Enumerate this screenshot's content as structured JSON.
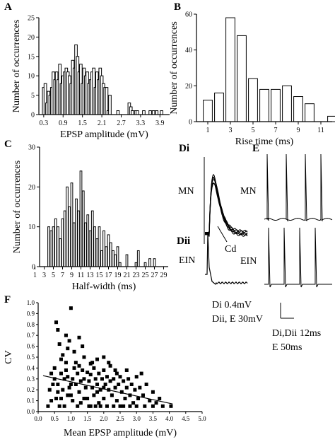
{
  "panels": {
    "A": "A",
    "B": "B",
    "C": "C",
    "D_i": "Di",
    "D_ii": "Dii",
    "E": "E",
    "F": "F"
  },
  "traces": {
    "MN": "MN",
    "EIN": "EIN",
    "Cd": "Cd"
  },
  "scale_bars": {
    "di_amp": "Di    0.4mV",
    "dii_amp": "Dii, E 30mV",
    "dii_time": "Di,Dii  12ms",
    "e_time": "E        50ms"
  },
  "chart_data": [
    {
      "id": "A",
      "type": "bar",
      "xlabel": "EPSP amplitude (mV)",
      "ylabel": "Number of occurrences",
      "xlim": [
        0.15,
        4.2
      ],
      "ylim": [
        0,
        25
      ],
      "yticks": [
        0,
        5,
        10,
        15,
        20,
        25
      ],
      "xticks": [
        "0.3",
        "0.9",
        "1.5",
        "2.1",
        "2.7",
        "3.3",
        "3.9"
      ],
      "xtick_values": [
        0.3,
        0.9,
        1.5,
        2.1,
        2.7,
        3.3,
        3.9
      ],
      "bin_width": 0.08,
      "x": [
        0.3,
        0.35,
        0.4,
        0.45,
        0.5,
        0.55,
        0.6,
        0.65,
        0.7,
        0.75,
        0.8,
        0.85,
        0.9,
        0.95,
        1.0,
        1.05,
        1.1,
        1.15,
        1.2,
        1.25,
        1.3,
        1.35,
        1.4,
        1.45,
        1.5,
        1.55,
        1.6,
        1.65,
        1.7,
        1.75,
        1.8,
        1.85,
        1.9,
        1.95,
        2.0,
        2.05,
        2.1,
        2.15,
        2.2,
        2.25,
        2.3,
        2.35,
        2.6,
        2.95,
        3.0,
        3.05,
        3.15,
        3.2,
        3.4,
        3.6,
        3.7,
        3.8,
        3.95
      ],
      "values": [
        7,
        8,
        3,
        6,
        5,
        7,
        11,
        9,
        11,
        9,
        13,
        8,
        10,
        11,
        12,
        11,
        10,
        8,
        14,
        12,
        18,
        15,
        11,
        13,
        8,
        12,
        10,
        11,
        8,
        9,
        11,
        12,
        7,
        11,
        9,
        12,
        10,
        8,
        7,
        7,
        1,
        5,
        1,
        3,
        2,
        1,
        1,
        1,
        1,
        1,
        1,
        1,
        1
      ]
    },
    {
      "id": "B",
      "type": "bar",
      "xlabel": "Rise time (ms)",
      "ylabel": "Number of occurrences",
      "xlim": [
        0,
        12
      ],
      "ylim": [
        0,
        60
      ],
      "yticks": [
        0,
        20,
        40,
        60
      ],
      "xticks": [
        "1",
        "3",
        "5",
        "7",
        "9",
        "11"
      ],
      "xtick_values": [
        1,
        3,
        5,
        7,
        9,
        11
      ],
      "bin_width": 0.8,
      "x": [
        1,
        2,
        3,
        4,
        5,
        6,
        7,
        8,
        9,
        10,
        11,
        12
      ],
      "values": [
        12,
        16,
        58,
        48,
        24,
        18,
        18,
        20,
        14,
        10,
        0,
        3
      ]
    },
    {
      "id": "C",
      "type": "bar",
      "xlabel": "Half-width (ms)",
      "ylabel": "Number of occurrences",
      "xlim": [
        2,
        30
      ],
      "ylim": [
        0,
        30
      ],
      "yticks": [
        0,
        10,
        20,
        30
      ],
      "xticks": [
        "1",
        "3",
        "5",
        "7",
        "9",
        "11",
        "13",
        "15",
        "17",
        "19",
        "21",
        "23",
        "25",
        "27",
        "29"
      ],
      "xtick_values": [
        1,
        3,
        5,
        7,
        9,
        11,
        13,
        15,
        17,
        19,
        21,
        23,
        25,
        27,
        29
      ],
      "bin_width": 0.42,
      "x": [
        4,
        4.5,
        5,
        5.5,
        6,
        6.5,
        7,
        7.5,
        8,
        8.5,
        9,
        9.5,
        10,
        10.5,
        11,
        11.5,
        12,
        12.5,
        13,
        13.5,
        14,
        14.5,
        15,
        15.5,
        16,
        16.5,
        17,
        17.5,
        18,
        18.5,
        19,
        19.5,
        21,
        23,
        23.5,
        25,
        26,
        27
      ],
      "values": [
        10,
        9,
        10,
        12,
        10,
        7,
        12,
        14,
        20,
        15,
        21,
        11,
        17,
        14,
        24,
        19,
        11,
        13,
        9,
        14,
        10,
        7,
        10,
        4,
        9,
        5,
        8,
        6,
        4,
        3,
        5,
        1,
        3,
        1,
        4,
        1,
        2,
        2
      ]
    },
    {
      "id": "F",
      "type": "scatter",
      "xlabel": "Mean EPSP amplitude (mV)",
      "ylabel": "CV",
      "xlim": [
        0,
        5
      ],
      "ylim": [
        0,
        1
      ],
      "xticks": [
        "0.0",
        "0.5",
        "1.0",
        "1.5",
        "2.0",
        "2.5",
        "3.0",
        "3.5",
        "4.0",
        "4.5",
        "5.0"
      ],
      "xtick_values": [
        0,
        0.5,
        1,
        1.5,
        2,
        2.5,
        3,
        3.5,
        4,
        4.5,
        5
      ],
      "yticks": [
        "0.0",
        "0.1",
        "0.2",
        "0.3",
        "0.4",
        "0.5",
        "0.6",
        "0.7",
        "0.8",
        "0.9",
        "1.0"
      ],
      "ytick_values": [
        0,
        0.1,
        0.2,
        0.3,
        0.4,
        0.5,
        0.6,
        0.7,
        0.8,
        0.9,
        1.0
      ],
      "trendline": [
        [
          0.15,
          0.33
        ],
        [
          4.1,
          0.07
        ]
      ],
      "points": [
        [
          0.55,
          0.82
        ],
        [
          0.6,
          0.75
        ],
        [
          0.65,
          0.62
        ],
        [
          0.75,
          0.52
        ],
        [
          0.85,
          0.7
        ],
        [
          0.9,
          0.58
        ],
        [
          1.0,
          0.95
        ],
        [
          0.95,
          0.65
        ],
        [
          1.1,
          0.55
        ],
        [
          1.15,
          0.45
        ],
        [
          1.25,
          0.68
        ],
        [
          1.35,
          0.6
        ],
        [
          1.4,
          0.5
        ],
        [
          0.7,
          0.48
        ],
        [
          1.6,
          0.44
        ],
        [
          1.8,
          0.48
        ],
        [
          2.0,
          0.5
        ],
        [
          2.15,
          0.45
        ],
        [
          2.2,
          0.42
        ],
        [
          2.35,
          0.38
        ],
        [
          0.4,
          0.35
        ],
        [
          0.5,
          0.4
        ],
        [
          0.5,
          0.3
        ],
        [
          0.6,
          0.25
        ],
        [
          0.6,
          0.18
        ],
        [
          0.7,
          0.12
        ],
        [
          0.75,
          0.2
        ],
        [
          0.8,
          0.3
        ],
        [
          0.85,
          0.38
        ],
        [
          0.9,
          0.32
        ],
        [
          0.95,
          0.22
        ],
        [
          1.0,
          0.15
        ],
        [
          1.05,
          0.1
        ],
        [
          1.05,
          0.3
        ],
        [
          1.1,
          0.4
        ],
        [
          1.15,
          0.25
        ],
        [
          1.2,
          0.35
        ],
        [
          1.25,
          0.18
        ],
        [
          1.3,
          0.28
        ],
        [
          1.3,
          0.08
        ],
        [
          1.35,
          0.38
        ],
        [
          1.4,
          0.3
        ],
        [
          1.45,
          0.22
        ],
        [
          1.5,
          0.36
        ],
        [
          1.5,
          0.12
        ],
        [
          1.55,
          0.28
        ],
        [
          1.6,
          0.34
        ],
        [
          1.6,
          0.05
        ],
        [
          1.65,
          0.22
        ],
        [
          1.7,
          0.4
        ],
        [
          1.7,
          0.15
        ],
        [
          1.75,
          0.3
        ],
        [
          1.8,
          0.25
        ],
        [
          1.85,
          0.35
        ],
        [
          1.85,
          0.08
        ],
        [
          1.9,
          0.2
        ],
        [
          1.95,
          0.3
        ],
        [
          2.0,
          0.38
        ],
        [
          2.0,
          0.12
        ],
        [
          2.05,
          0.25
        ],
        [
          2.1,
          0.32
        ],
        [
          2.1,
          0.05
        ],
        [
          2.15,
          0.2
        ],
        [
          2.2,
          0.28
        ],
        [
          2.25,
          0.15
        ],
        [
          2.3,
          0.3
        ],
        [
          2.35,
          0.22
        ],
        [
          2.4,
          0.1
        ],
        [
          2.45,
          0.25
        ],
        [
          2.5,
          0.32
        ],
        [
          2.5,
          0.05
        ],
        [
          2.55,
          0.18
        ],
        [
          2.6,
          0.28
        ],
        [
          2.65,
          0.12
        ],
        [
          2.7,
          0.22
        ],
        [
          2.75,
          0.3
        ],
        [
          2.8,
          0.15
        ],
        [
          2.85,
          0.25
        ],
        [
          2.9,
          0.08
        ],
        [
          2.95,
          0.2
        ],
        [
          3.0,
          0.32
        ],
        [
          3.05,
          0.12
        ],
        [
          3.1,
          0.22
        ],
        [
          3.2,
          0.15
        ],
        [
          3.25,
          0.05
        ],
        [
          3.3,
          0.25
        ],
        [
          3.4,
          0.1
        ],
        [
          3.5,
          0.18
        ],
        [
          3.6,
          0.08
        ],
        [
          3.7,
          0.12
        ],
        [
          3.8,
          0.05
        ],
        [
          4.05,
          0.05
        ],
        [
          0.35,
          0.2
        ],
        [
          0.4,
          0.1
        ],
        [
          0.45,
          0.25
        ],
        [
          0.3,
          0.05
        ],
        [
          0.55,
          0.12
        ],
        [
          0.65,
          0.05
        ],
        [
          0.7,
          0.35
        ],
        [
          0.8,
          0.05
        ],
        [
          0.9,
          0.15
        ],
        [
          1.0,
          0.25
        ],
        [
          1.2,
          0.05
        ],
        [
          1.4,
          0.12
        ],
        [
          1.55,
          0.05
        ],
        [
          1.75,
          0.05
        ],
        [
          1.9,
          0.05
        ],
        [
          2.0,
          0.22
        ],
        [
          2.3,
          0.05
        ],
        [
          2.6,
          0.05
        ],
        [
          2.8,
          0.05
        ],
        [
          3.0,
          0.05
        ],
        [
          3.15,
          0.35
        ],
        [
          3.5,
          0.05
        ],
        [
          2.4,
          0.35
        ],
        [
          1.8,
          0.18
        ],
        [
          1.25,
          0.42
        ],
        [
          1.65,
          0.45
        ],
        [
          0.85,
          0.45
        ],
        [
          2.7,
          0.38
        ]
      ]
    }
  ]
}
